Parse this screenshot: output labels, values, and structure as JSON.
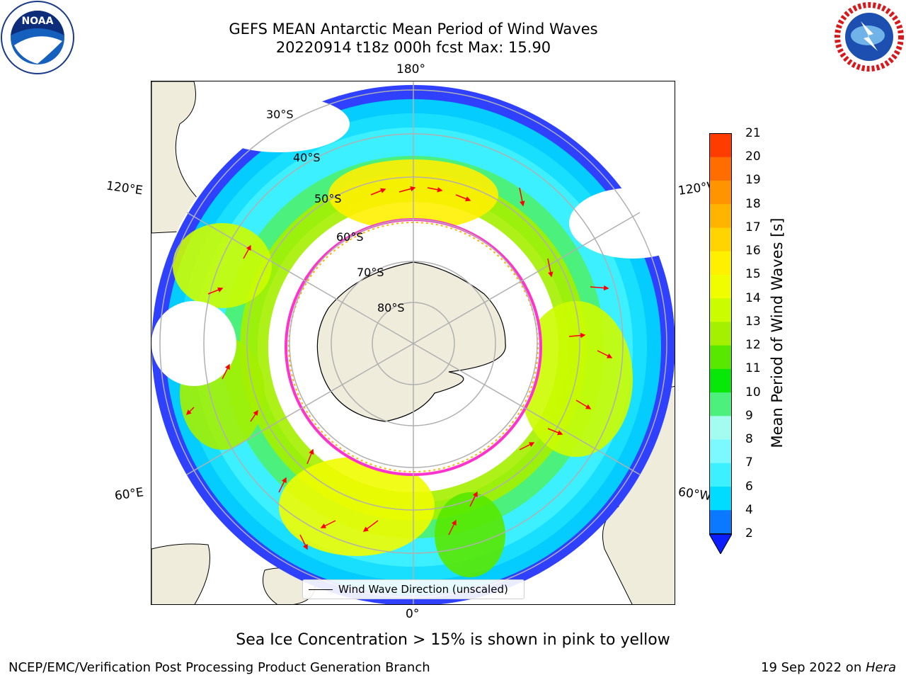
{
  "title": {
    "line1": "GEFS MEAN Antarctic Mean Period of Wind Waves",
    "line2": "20220914 t18z 000h fcst   Max: 15.90"
  },
  "map": {
    "projection": "south-polar-stereographic",
    "longitude_labels": [
      "180°",
      "120°E",
      "120°W",
      "60°E",
      "60°W",
      "0°"
    ],
    "latitude_labels": [
      "30°S",
      "40°S",
      "50°S",
      "60°S",
      "70°S",
      "80°S"
    ],
    "land_color": "#efecdc",
    "ocean_color": "#ffffff",
    "gridline_color": "#b0b0b0",
    "arrow_color": "#ff0000",
    "sea_ice_edge_color": "#ff33cc"
  },
  "colorbar": {
    "label": "Mean Period of Wind Waves [s]",
    "ticks": [
      "2",
      "4",
      "6",
      "7",
      "8",
      "9",
      "10",
      "11",
      "12",
      "13",
      "14",
      "15",
      "16",
      "17",
      "18",
      "19",
      "20",
      "21"
    ],
    "colors": [
      "#0a78ff",
      "#00dcff",
      "#3cf0ff",
      "#7cf8ff",
      "#a4fcf0",
      "#4cf07c",
      "#08e808",
      "#58e800",
      "#a4f000",
      "#ccfc00",
      "#f0fc00",
      "#fff000",
      "#ffd400",
      "#ffb400",
      "#ff9400",
      "#ff6c00",
      "#ff3c00",
      "#ff0000"
    ],
    "under_color": "#0a1eff"
  },
  "legend": {
    "label": "Wind Wave Direction (unscaled)"
  },
  "subtitle": "Sea Ice Concentration > 15% is shown in pink to yellow",
  "footer": {
    "left": "NCEP/EMC/Verification Post Processing Product Generation Branch",
    "right_date": "19 Sep 2022 on ",
    "right_host": "Hera"
  },
  "logos": {
    "noaa_text": "NOAA",
    "nws_text": "NATIONAL WEATHER SERVICE"
  }
}
